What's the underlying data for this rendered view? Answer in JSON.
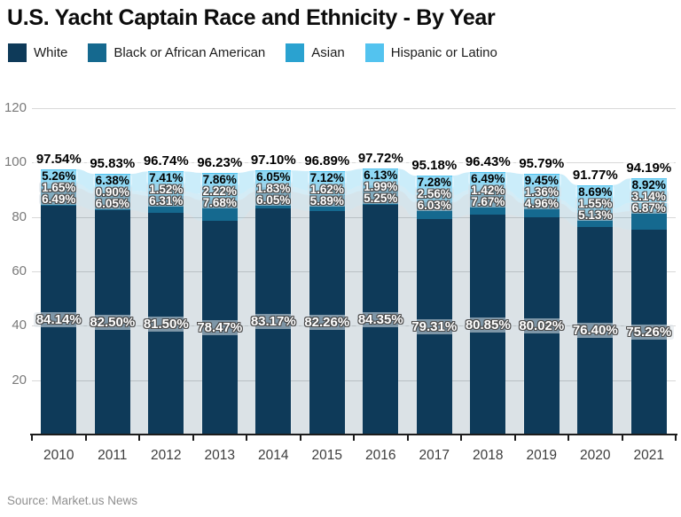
{
  "page": {
    "title": "U.S. Yacht Captain Race and Ethnicity - By Year",
    "source": "Source: Market.us News"
  },
  "chart_data": {
    "type": "bar",
    "subtype": "stacked",
    "title": "U.S. Yacht Captain Race and Ethnicity - By Year",
    "xlabel": "",
    "ylabel": "",
    "ylim": [
      0,
      120
    ],
    "y_ticks": [
      20,
      40,
      60,
      80,
      100,
      120
    ],
    "grid": true,
    "legend_position": "top",
    "value_suffix": "%",
    "categories": [
      "2010",
      "2011",
      "2012",
      "2013",
      "2014",
      "2015",
      "2016",
      "2017",
      "2018",
      "2019",
      "2020",
      "2021"
    ],
    "series": [
      {
        "name": "White",
        "color": "#0e3a59",
        "label_style": "light",
        "values": [
          84.14,
          82.5,
          81.5,
          78.47,
          83.17,
          82.26,
          84.35,
          79.31,
          80.85,
          80.02,
          76.4,
          75.26
        ]
      },
      {
        "name": "Black or African American",
        "color": "#15698f",
        "label_style": "light",
        "values": [
          6.49,
          6.05,
          6.31,
          7.68,
          6.05,
          5.89,
          5.25,
          6.03,
          7.67,
          4.96,
          5.13,
          6.87
        ]
      },
      {
        "name": "Asian",
        "color": "#2aa2d0",
        "label_style": "light",
        "values": [
          1.65,
          0.9,
          1.52,
          2.22,
          1.83,
          1.62,
          1.99,
          2.56,
          1.42,
          1.36,
          1.55,
          3.14
        ]
      },
      {
        "name": "Hispanic or Latino",
        "color": "#53c3ef",
        "label_style": "dark",
        "values": [
          5.26,
          6.38,
          7.41,
          7.86,
          6.05,
          7.12,
          6.13,
          7.28,
          6.49,
          9.45,
          8.69,
          8.92
        ]
      }
    ],
    "totals": [
      97.54,
      95.83,
      96.74,
      96.23,
      97.1,
      96.89,
      97.72,
      95.18,
      96.43,
      95.79,
      91.77,
      94.19
    ],
    "source": "Source: Market.us News"
  }
}
